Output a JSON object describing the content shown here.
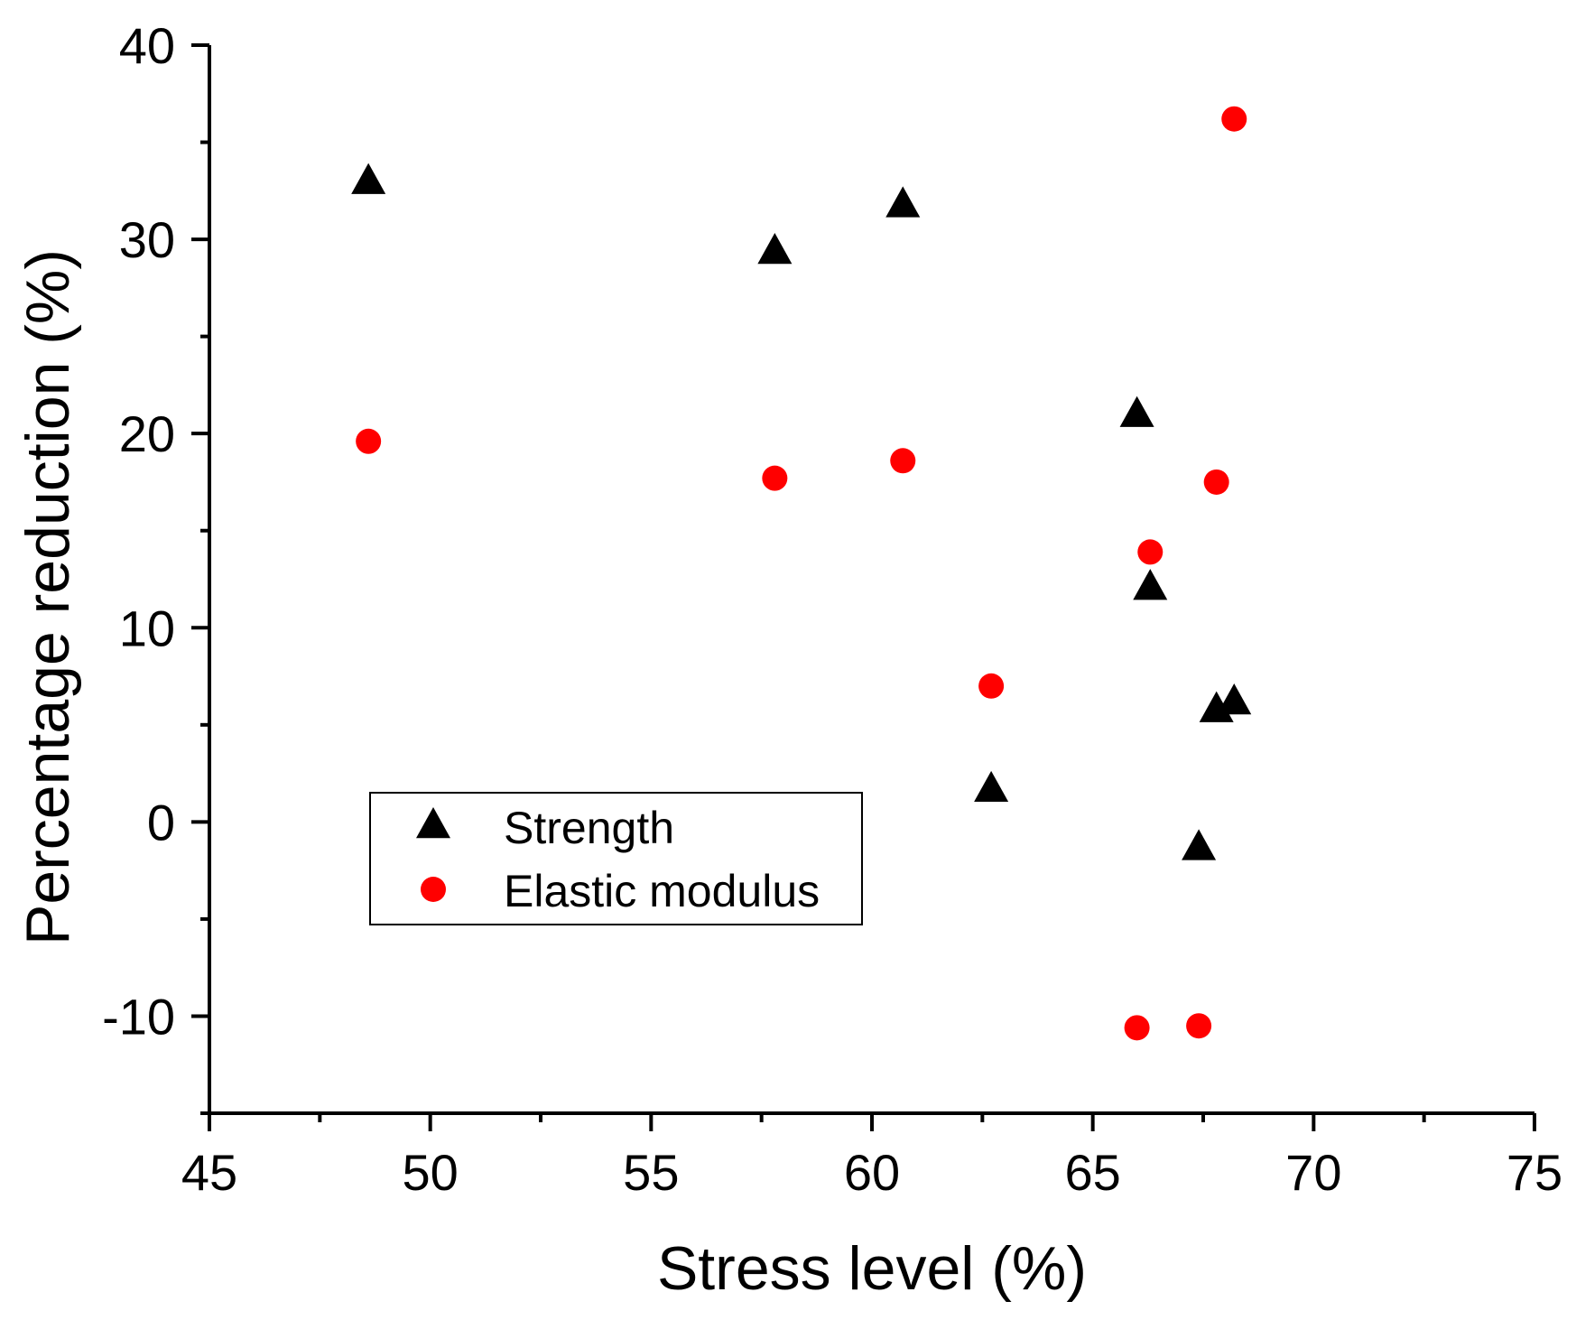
{
  "chart_data": {
    "type": "scatter",
    "title": "",
    "xlabel": "Stress level (%)",
    "ylabel": "Percentage reduction (%)",
    "xlim": [
      45,
      75
    ],
    "ylim": [
      -15,
      40
    ],
    "xticks": [
      45,
      50,
      55,
      60,
      65,
      70,
      75
    ],
    "yticks": [
      -10,
      0,
      10,
      20,
      30,
      40
    ],
    "xtick_labels": [
      "45",
      "50",
      "55",
      "60",
      "65",
      "70",
      "75"
    ],
    "ytick_labels": [
      "-10",
      "0",
      "10",
      "20",
      "30",
      "40"
    ],
    "grid": false,
    "legend_position": "lower-left",
    "series": [
      {
        "name": "Strength",
        "marker": "triangle",
        "color": "#000000",
        "x": [
          48.6,
          57.8,
          60.7,
          62.7,
          66.0,
          66.3,
          67.4,
          67.8,
          68.2
        ],
        "y": [
          33.0,
          29.4,
          31.8,
          1.7,
          21.0,
          12.1,
          -1.3,
          5.8,
          6.2
        ]
      },
      {
        "name": "Elastic modulus",
        "marker": "circle",
        "color": "#ff0000",
        "x": [
          48.6,
          57.8,
          60.7,
          62.7,
          66.0,
          66.3,
          67.4,
          67.8,
          68.2
        ],
        "y": [
          19.6,
          17.7,
          18.6,
          7.0,
          -10.6,
          13.9,
          -10.5,
          17.5,
          36.2
        ]
      }
    ]
  }
}
